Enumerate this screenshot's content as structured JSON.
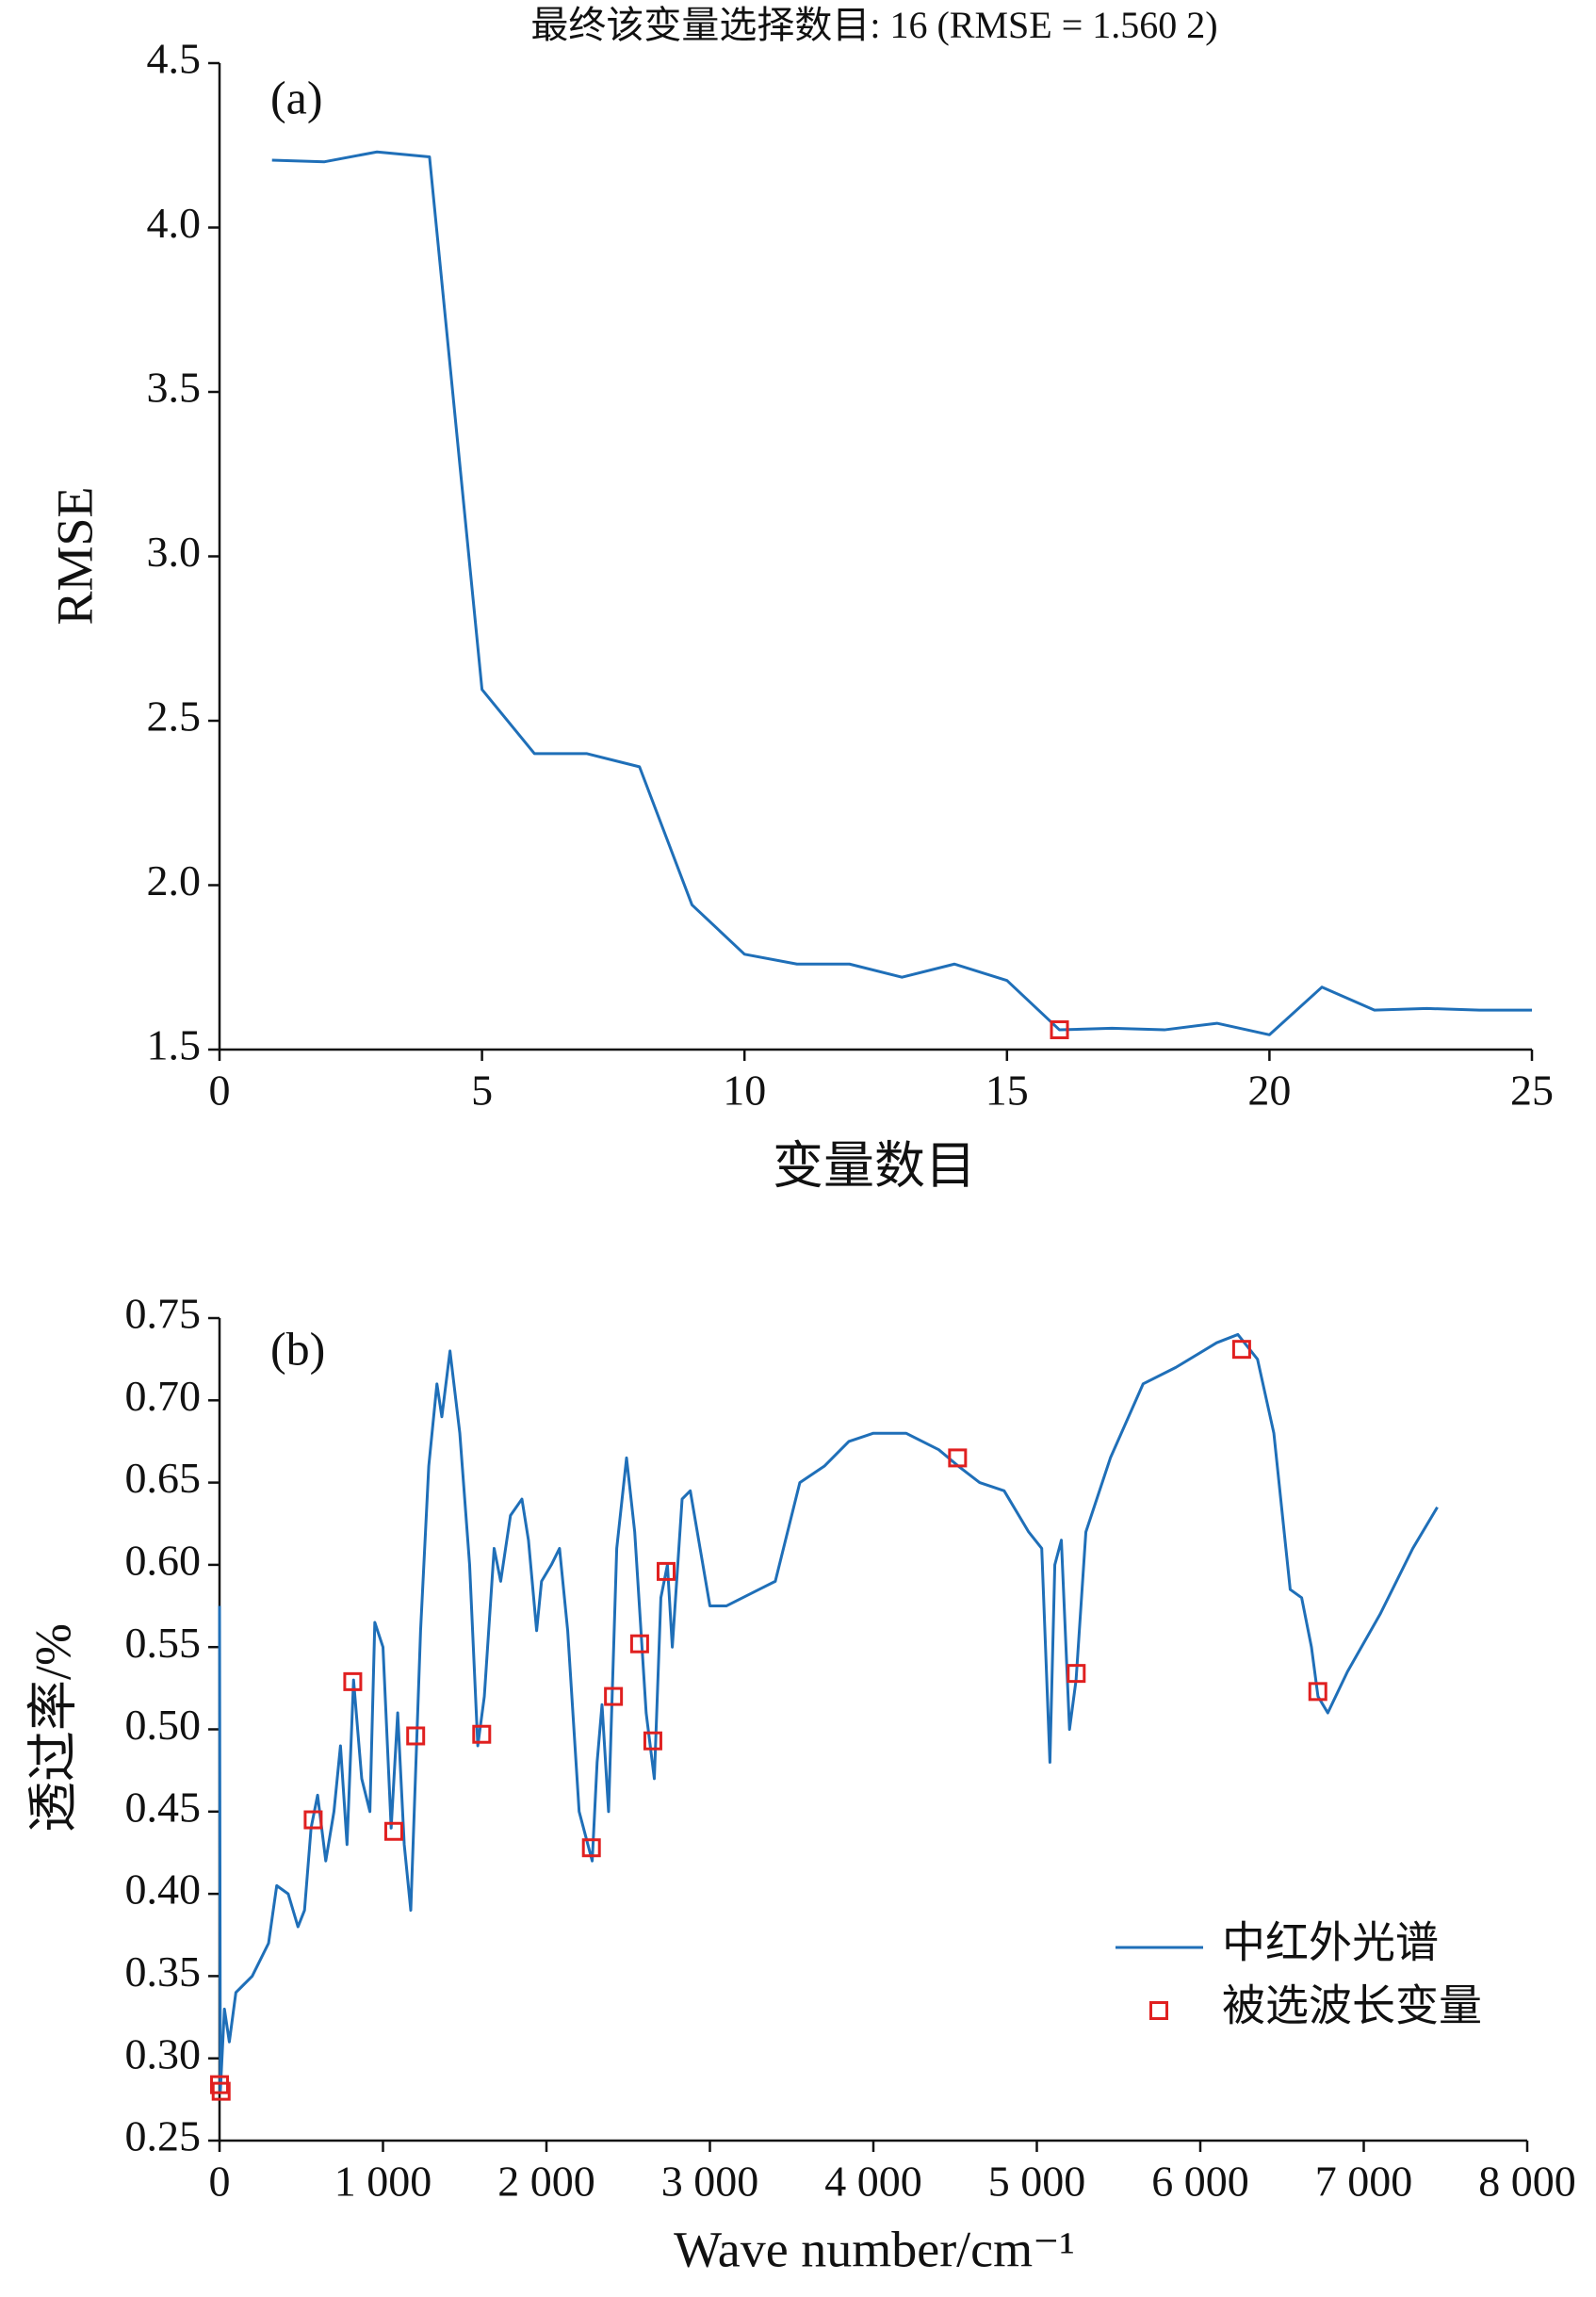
{
  "chart_data": [
    {
      "type": "line",
      "title": "最终该变量选择数目: 16  (RMSE = 1.560 2)",
      "annotation": "(a)",
      "x_label": "变量数目",
      "y_label": "RMSE",
      "x": [
        1,
        2,
        3,
        4,
        5,
        6,
        7,
        8,
        9,
        10,
        11,
        12,
        13,
        14,
        15,
        16,
        17,
        18,
        19,
        20,
        21,
        22,
        23,
        24,
        25
      ],
      "values": [
        4.205,
        4.2,
        4.23,
        4.215,
        2.595,
        2.4,
        2.4,
        2.36,
        1.94,
        1.79,
        1.76,
        1.76,
        1.72,
        1.76,
        1.71,
        1.56,
        1.565,
        1.56,
        1.58,
        1.545,
        1.69,
        1.62,
        1.625,
        1.62,
        1.62
      ],
      "color": "#1f6fb8",
      "selected": {
        "x": [
          16
        ],
        "values": [
          1.5602
        ],
        "color": "#e02020"
      },
      "xlim": [
        0,
        25
      ],
      "xticks": [
        0,
        5,
        10,
        15,
        20,
        25
      ],
      "ylim": [
        1.5,
        4.5
      ],
      "yticks": [
        1.5,
        {
          "value": 2,
          "label": "2.0"
        },
        2.5,
        {
          "value": 3,
          "label": "3.0"
        },
        3.5,
        {
          "value": 4,
          "label": "4.0"
        },
        4.5
      ]
    },
    {
      "type": "line",
      "annotation": "(b)",
      "x_label": "Wave number/cm⁻¹",
      "y_label": "透过率/%",
      "series": [
        {
          "name": "中红外光谱",
          "color": "#1f6fb8",
          "x": [
            0,
            5,
            30,
            60,
            100,
            200,
            300,
            350,
            420,
            480,
            520,
            560,
            600,
            650,
            700,
            740,
            780,
            820,
            870,
            920,
            950,
            1000,
            1050,
            1090,
            1130,
            1170,
            1230,
            1280,
            1330,
            1360,
            1410,
            1470,
            1530,
            1580,
            1620,
            1680,
            1720,
            1780,
            1850,
            1890,
            1940,
            1970,
            2030,
            2080,
            2130,
            2200,
            2280,
            2310,
            2340,
            2380,
            2430,
            2490,
            2540,
            2610,
            2660,
            2700,
            2740,
            2770,
            2830,
            2880,
            2940,
            3000,
            3100,
            3300,
            3400,
            3550,
            3700,
            3850,
            4000,
            4200,
            4400,
            4520,
            4650,
            4800,
            4950,
            5030,
            5080,
            5110,
            5150,
            5200,
            5240,
            5300,
            5450,
            5650,
            5850,
            6100,
            6230,
            6350,
            6450,
            6550,
            6620,
            6680,
            6720,
            6780,
            6900,
            7100,
            7300,
            7450
          ],
          "values": [
            0.575,
            0.28,
            0.33,
            0.31,
            0.34,
            0.35,
            0.37,
            0.405,
            0.4,
            0.38,
            0.39,
            0.44,
            0.46,
            0.42,
            0.45,
            0.49,
            0.43,
            0.53,
            0.47,
            0.45,
            0.565,
            0.55,
            0.44,
            0.51,
            0.43,
            0.39,
            0.56,
            0.66,
            0.71,
            0.69,
            0.73,
            0.68,
            0.6,
            0.49,
            0.52,
            0.61,
            0.59,
            0.63,
            0.64,
            0.615,
            0.56,
            0.59,
            0.6,
            0.61,
            0.56,
            0.45,
            0.42,
            0.48,
            0.515,
            0.45,
            0.61,
            0.665,
            0.62,
            0.51,
            0.47,
            0.58,
            0.6,
            0.55,
            0.64,
            0.645,
            0.61,
            0.575,
            0.575,
            0.585,
            0.59,
            0.65,
            0.66,
            0.675,
            0.68,
            0.68,
            0.67,
            0.66,
            0.65,
            0.645,
            0.62,
            0.61,
            0.48,
            0.6,
            0.615,
            0.5,
            0.53,
            0.62,
            0.665,
            0.71,
            0.72,
            0.735,
            0.74,
            0.725,
            0.68,
            0.585,
            0.58,
            0.55,
            0.52,
            0.51,
            0.535,
            0.57,
            0.61,
            0.635
          ]
        },
        {
          "name": "被选波长变量",
          "color": "#e02020",
          "marker": "square",
          "x": [
            0,
            10,
            573,
            815,
            1066,
            1200,
            1604,
            2275,
            2410,
            2570,
            2651,
            2732,
            4515,
            5241,
            6253,
            6719
          ],
          "values": [
            0.284,
            0.28,
            0.445,
            0.529,
            0.438,
            0.496,
            0.497,
            0.428,
            0.52,
            0.552,
            0.493,
            0.596,
            0.665,
            0.534,
            0.731,
            0.523
          ]
        }
      ],
      "legend": "lower right",
      "xlim": [
        0,
        8000
      ],
      "xticks": [
        0,
        {
          "value": 1000,
          "label": "1 000"
        },
        {
          "value": 2000,
          "label": "2 000"
        },
        {
          "value": 3000,
          "label": "3 000"
        },
        {
          "value": 4000,
          "label": "4 000"
        },
        {
          "value": 5000,
          "label": "5 000"
        },
        {
          "value": 6000,
          "label": "6 000"
        },
        {
          "value": 7000,
          "label": "7 000"
        },
        {
          "value": 8000,
          "label": "8 000"
        }
      ],
      "ylim": [
        0.25,
        0.75
      ],
      "yticks": [
        0.25,
        {
          "value": 0.3,
          "label": "0.30"
        },
        0.35,
        {
          "value": 0.4,
          "label": "0.40"
        },
        0.45,
        {
          "value": 0.5,
          "label": "0.50"
        },
        0.55,
        {
          "value": 0.6,
          "label": "0.60"
        },
        0.65,
        {
          "value": 0.7,
          "label": "0.70"
        },
        0.75
      ]
    }
  ]
}
